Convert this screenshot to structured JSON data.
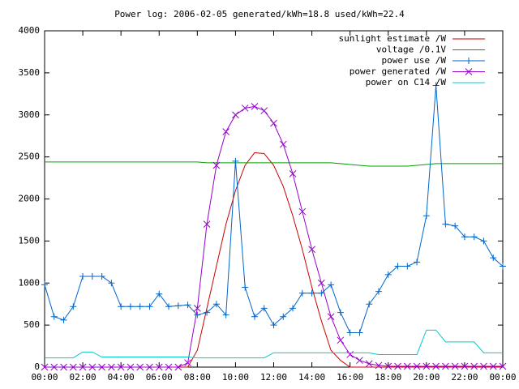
{
  "chart_data": {
    "type": "line",
    "title": "Power log: 2006-02-05 generated/kWh=18.8 used/kWh=22.4",
    "x": [
      0,
      0.5,
      1,
      1.5,
      2,
      2.5,
      3,
      3.5,
      4,
      4.5,
      5,
      5.5,
      6,
      6.5,
      7,
      7.5,
      8,
      8.5,
      9,
      9.5,
      10,
      10.5,
      11,
      11.5,
      12,
      12.5,
      13,
      13.5,
      14,
      14.5,
      15,
      15.5,
      16,
      16.5,
      17,
      17.5,
      18,
      18.5,
      19,
      19.5,
      20,
      20.5,
      21,
      21.5,
      22,
      22.5,
      23,
      23.5,
      24
    ],
    "series": [
      {
        "name": "sunlight estimate /W",
        "color": "#cc0000",
        "marker": "none",
        "values": [
          0,
          0,
          0,
          0,
          0,
          0,
          0,
          0,
          0,
          0,
          0,
          0,
          0,
          0,
          0,
          0,
          200,
          700,
          1200,
          1700,
          2100,
          2400,
          2550,
          2540,
          2400,
          2150,
          1800,
          1400,
          950,
          550,
          200,
          80,
          0,
          0,
          0,
          0,
          0,
          0,
          0,
          0,
          0,
          0,
          0,
          0,
          0,
          0,
          0,
          0,
          0
        ]
      },
      {
        "name": "voltage /0.1V",
        "color": "#00a000",
        "marker": "none",
        "values": [
          2440,
          2440,
          2440,
          2440,
          2440,
          2440,
          2440,
          2440,
          2440,
          2440,
          2440,
          2440,
          2440,
          2440,
          2440,
          2440,
          2440,
          2430,
          2430,
          2430,
          2430,
          2430,
          2430,
          2430,
          2430,
          2430,
          2430,
          2430,
          2430,
          2430,
          2430,
          2420,
          2410,
          2400,
          2390,
          2390,
          2390,
          2390,
          2390,
          2400,
          2410,
          2420,
          2420,
          2420,
          2420,
          2420,
          2420,
          2420,
          2420
        ]
      },
      {
        "name": "power use /W",
        "color": "#0066cc",
        "marker": "plus",
        "values": [
          980,
          600,
          560,
          720,
          1080,
          1080,
          1080,
          1000,
          720,
          720,
          720,
          720,
          870,
          720,
          730,
          740,
          620,
          650,
          750,
          620,
          2450,
          950,
          600,
          700,
          500,
          600,
          700,
          880,
          880,
          880,
          980,
          650,
          410,
          410,
          750,
          900,
          1100,
          1200,
          1200,
          1250,
          1800,
          3350,
          1700,
          1680,
          1550,
          1550,
          1500,
          1300,
          1200
        ]
      },
      {
        "name": "power generated /W",
        "color": "#9900cc",
        "marker": "cross",
        "values": [
          0,
          0,
          0,
          0,
          0,
          0,
          0,
          0,
          0,
          0,
          0,
          0,
          0,
          0,
          0,
          50,
          700,
          1700,
          2400,
          2800,
          3000,
          3080,
          3100,
          3050,
          2900,
          2650,
          2300,
          1850,
          1400,
          1000,
          600,
          320,
          150,
          80,
          40,
          20,
          10,
          10,
          10,
          10,
          10,
          10,
          10,
          10,
          10,
          10,
          10,
          10,
          10
        ]
      },
      {
        "name": "power on C14 /W",
        "color": "#00cccc",
        "marker": "none",
        "values": [
          110,
          110,
          110,
          110,
          180,
          180,
          120,
          120,
          120,
          120,
          120,
          120,
          120,
          120,
          120,
          120,
          110,
          110,
          110,
          110,
          110,
          110,
          110,
          110,
          170,
          170,
          170,
          170,
          170,
          170,
          170,
          170,
          170,
          170,
          170,
          150,
          150,
          150,
          150,
          150,
          440,
          440,
          300,
          300,
          300,
          300,
          170,
          170,
          170
        ]
      }
    ],
    "xlim": [
      0,
      24
    ],
    "xticks": [
      {
        "value": 0,
        "label": "00:00"
      },
      {
        "value": 2,
        "label": "02:00"
      },
      {
        "value": 4,
        "label": "04:00"
      },
      {
        "value": 6,
        "label": "06:00"
      },
      {
        "value": 8,
        "label": "08:00"
      },
      {
        "value": 10,
        "label": "10:00"
      },
      {
        "value": 12,
        "label": "12:00"
      },
      {
        "value": 14,
        "label": "14:00"
      },
      {
        "value": 16,
        "label": "16:00"
      },
      {
        "value": 18,
        "label": "18:00"
      },
      {
        "value": 20,
        "label": "20:00"
      },
      {
        "value": 22,
        "label": "22:00"
      },
      {
        "value": 24,
        "label": "00:00"
      }
    ],
    "ylim": [
      0,
      4000
    ],
    "yticks": [
      0,
      500,
      1000,
      1500,
      2000,
      2500,
      3000,
      3500,
      4000
    ],
    "legend": "top-right"
  }
}
